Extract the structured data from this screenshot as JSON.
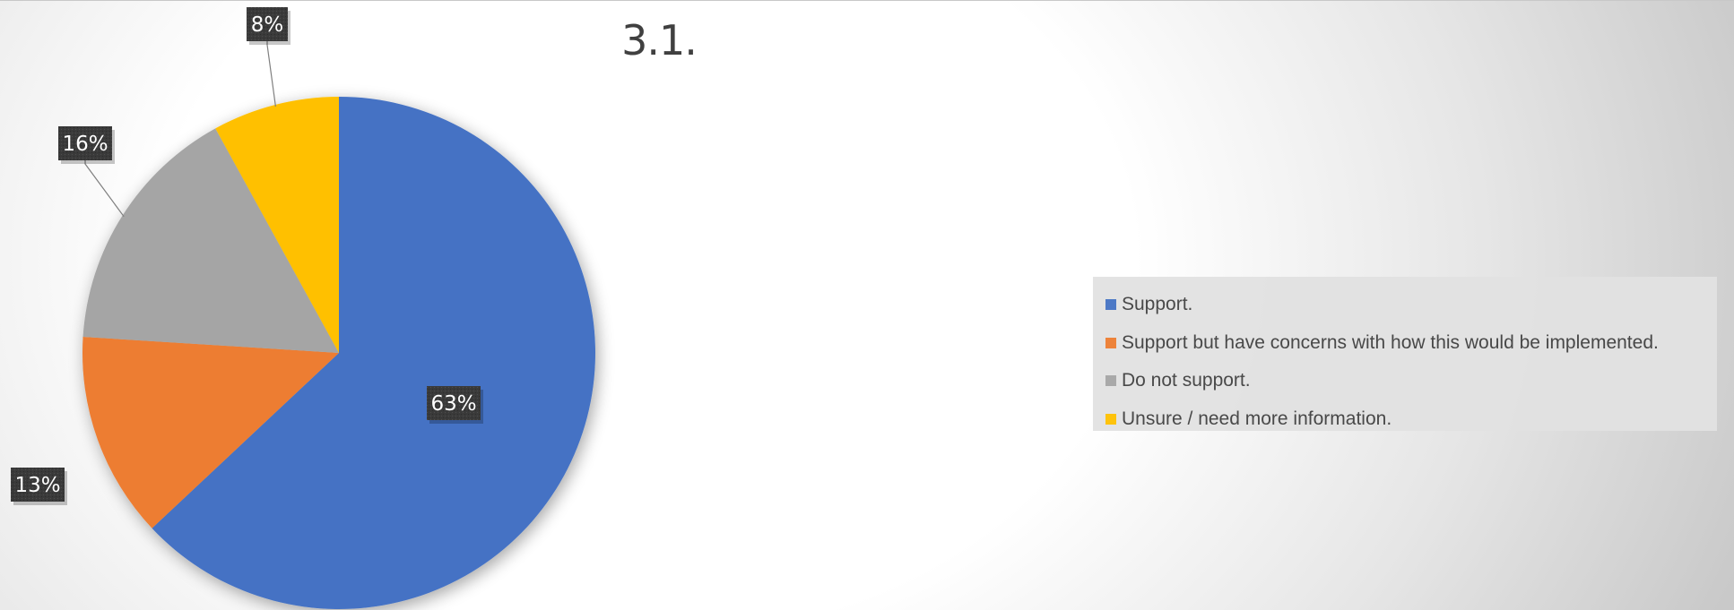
{
  "chart_data": {
    "type": "pie",
    "title": "3.1.",
    "categories": [
      "Support.",
      "Support but have concerns with how this would be implemented.",
      "Do not support.",
      "Unsure / need more information."
    ],
    "values": [
      63,
      13,
      16,
      8
    ],
    "data_labels": [
      "63%",
      "13%",
      "16%",
      "8%"
    ],
    "colors": [
      "#4472C4",
      "#ED7D31",
      "#A5A5A5",
      "#FFC000"
    ],
    "start_angle_deg": 0,
    "direction": "clockwise",
    "legend_position": "right"
  }
}
